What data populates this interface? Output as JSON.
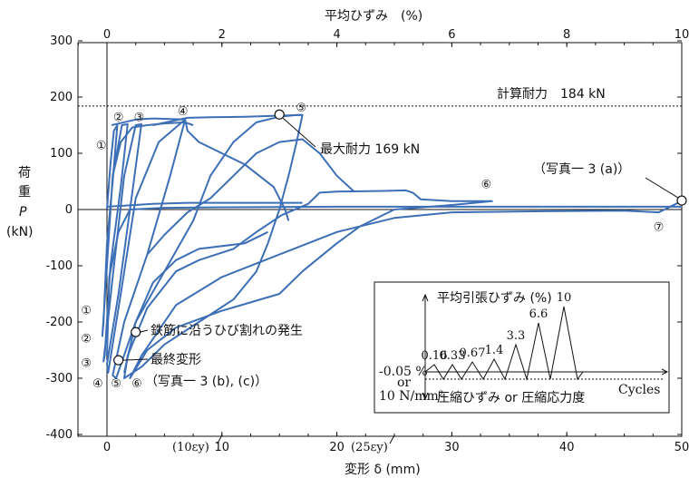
{
  "chart_data": {
    "type": "line",
    "xlabel": "変形 δ (mm)",
    "x2label": "平均ひずみ　(%)",
    "ylabel": [
      "荷",
      "重",
      "P",
      "(kN)"
    ],
    "xlim": [
      -2.5,
      50
    ],
    "x2lim": [
      -0.5,
      10
    ],
    "ylim": [
      -400,
      300
    ],
    "xticks": [
      0,
      10,
      20,
      30,
      40,
      50
    ],
    "x2ticks": [
      0,
      2,
      4,
      6,
      8,
      10
    ],
    "yticks": [
      300,
      200,
      100,
      0,
      -100,
      -200,
      -300,
      -400
    ],
    "xtick_labels": [
      "0",
      "10",
      "20",
      "30",
      "40",
      "50"
    ],
    "x2tick_labels": [
      "0",
      "2",
      "4",
      "6",
      "8",
      "10"
    ],
    "ytick_labels": [
      "300",
      "200",
      "100",
      "0",
      "-100",
      "-200",
      "-300",
      "-400"
    ],
    "strain_marks": [
      "(10εy)",
      "(25εy)"
    ],
    "strain_mark_x": [
      10,
      25
    ],
    "reference_line": {
      "label": "計算耐力　184 kN",
      "value": 184
    },
    "annotations": {
      "max_capacity": "最大耐力 169 kN",
      "photo_a": "（写真一 3 (a)）",
      "crack": "鉄筋に沿うひび割れの発生",
      "final_label": "最終変形",
      "photo_bc": "（写真一 3 (b), (c)）"
    },
    "markers": [
      {
        "name": "max",
        "x": 15,
        "y": 169
      },
      {
        "name": "end",
        "x": 50,
        "y": 16
      },
      {
        "name": "crack",
        "x": 2.5,
        "y": -218
      },
      {
        "name": "final",
        "x": 1.0,
        "y": -268
      }
    ],
    "cycle_labels_pos": [
      {
        "label": "①",
        "x": -0.5,
        "y": 115
      },
      {
        "label": "②",
        "x": 1.0,
        "y": 165
      },
      {
        "label": "③",
        "x": 2.8,
        "y": 165
      },
      {
        "label": "④",
        "x": 6.6,
        "y": 176
      },
      {
        "label": "⑤",
        "x": 16.9,
        "y": 182
      },
      {
        "label": "⑥",
        "x": 33.0,
        "y": 46
      },
      {
        "label": "⑦",
        "x": 48.0,
        "y": -30
      }
    ],
    "cycle_labels_neg": [
      {
        "label": "①",
        "x": -1.8,
        "y": -178
      },
      {
        "label": "②",
        "x": -1.8,
        "y": -228
      },
      {
        "label": "③",
        "x": -1.8,
        "y": -272
      },
      {
        "label": "④",
        "x": -0.8,
        "y": -308
      },
      {
        "label": "⑤",
        "x": 0.8,
        "y": -308
      },
      {
        "label": "⑥",
        "x": 2.6,
        "y": -308
      }
    ],
    "series": [
      {
        "values": [
          [
            0,
            0
          ],
          [
            0.3,
            80
          ],
          [
            0.6,
            140
          ],
          [
            0.9,
            150
          ],
          [
            0.5,
            50
          ],
          [
            0,
            -60
          ],
          [
            -0.3,
            -200
          ],
          [
            -0.4,
            -225
          ],
          [
            0,
            -100
          ],
          [
            0.5,
            60
          ],
          [
            1.3,
            150
          ],
          [
            1.8,
            152
          ],
          [
            1.2,
            40
          ],
          [
            0.3,
            -100
          ],
          [
            -0.2,
            -260
          ],
          [
            -0.3,
            -270
          ],
          [
            0.5,
            -120
          ],
          [
            1.5,
            60
          ],
          [
            2.5,
            150
          ],
          [
            3.0,
            152
          ],
          [
            2.2,
            30
          ],
          [
            1.0,
            -150
          ],
          [
            0,
            -275
          ],
          [
            0.1,
            -290
          ],
          [
            1.2,
            -150
          ],
          [
            2.5,
            20
          ],
          [
            4.5,
            120
          ],
          [
            6.8,
            160
          ],
          [
            5.5,
            60
          ],
          [
            3.5,
            -80
          ],
          [
            1.5,
            -200
          ],
          [
            0.5,
            -295
          ],
          [
            0.8,
            -300
          ],
          [
            2.5,
            -200
          ],
          [
            5.0,
            -110
          ],
          [
            7.5,
            -20
          ],
          [
            9.0,
            60
          ],
          [
            11,
            120
          ],
          [
            13,
            155
          ],
          [
            15,
            165
          ],
          [
            16.5,
            168
          ],
          [
            17,
            168
          ],
          [
            16.5,
            120
          ],
          [
            15.8,
            60
          ],
          [
            15,
            0
          ],
          [
            14,
            -60
          ],
          [
            13,
            -110
          ],
          [
            11,
            -160
          ],
          [
            8,
            -200
          ],
          [
            5,
            -240
          ],
          [
            3,
            -280
          ],
          [
            1.5,
            -300
          ],
          [
            1.8,
            -260
          ],
          [
            3.5,
            -175
          ],
          [
            6,
            -110
          ],
          [
            8,
            -90
          ],
          [
            11,
            -70
          ],
          [
            13,
            -40
          ],
          [
            15.2,
            -10
          ],
          [
            17.5,
            10
          ],
          [
            18.5,
            30
          ],
          [
            20,
            32
          ],
          [
            24,
            33
          ],
          [
            26,
            34
          ],
          [
            26.6,
            30
          ],
          [
            27.3,
            18
          ],
          [
            30,
            15
          ],
          [
            33.5,
            15
          ],
          [
            30,
            8
          ],
          [
            25,
            0
          ],
          [
            22,
            -30
          ],
          [
            20,
            -60
          ],
          [
            17,
            -110
          ],
          [
            15,
            -150
          ],
          [
            10,
            -180
          ],
          [
            6,
            -210
          ],
          [
            3.5,
            -250
          ],
          [
            2,
            -300
          ],
          [
            3,
            -260
          ],
          [
            6,
            -170
          ],
          [
            10,
            -120
          ],
          [
            15,
            -80
          ],
          [
            20,
            -40
          ],
          [
            25,
            -15
          ],
          [
            30,
            -5
          ],
          [
            38,
            -3
          ],
          [
            45,
            -2
          ],
          [
            48,
            -5
          ],
          [
            50,
            15
          ]
        ]
      }
    ],
    "extra_paths": [
      [
        [
          0.4,
          150
        ],
        [
          2.5,
          160
        ],
        [
          4,
          162
        ],
        [
          6.8,
          160
        ]
      ],
      [
        [
          4,
          150
        ],
        [
          7,
          163
        ],
        [
          9,
          164
        ],
        [
          12,
          165
        ],
        [
          15,
          167
        ],
        [
          17,
          168
        ]
      ],
      [
        [
          0,
          -260
        ],
        [
          0.2,
          -120
        ],
        [
          1,
          -40
        ],
        [
          2,
          0
        ],
        [
          5,
          3
        ],
        [
          10,
          4
        ],
        [
          20,
          5
        ],
        [
          30,
          5
        ],
        [
          38,
          5
        ],
        [
          45,
          5
        ],
        [
          50,
          5
        ]
      ],
      [
        [
          0,
          5
        ],
        [
          4,
          10
        ],
        [
          7,
          12
        ],
        [
          10,
          12
        ],
        [
          15,
          12
        ],
        [
          17,
          12
        ]
      ],
      [
        [
          6.8,
          160
        ],
        [
          7,
          140
        ],
        [
          8,
          120
        ],
        [
          10,
          100
        ],
        [
          12,
          80
        ],
        [
          14.5,
          40
        ],
        [
          15.5,
          0
        ],
        [
          15.8,
          -20
        ]
      ],
      [
        [
          1.5,
          -290
        ],
        [
          2.5,
          -200
        ],
        [
          4,
          -130
        ],
        [
          6,
          -90
        ],
        [
          8,
          -70
        ],
        [
          12,
          -60
        ],
        [
          14,
          -40
        ]
      ],
      [
        [
          0.5,
          60
        ],
        [
          1.2,
          120
        ],
        [
          2.2,
          146
        ],
        [
          3.5,
          150
        ],
        [
          5,
          153
        ],
        [
          6.8,
          155
        ],
        [
          7.5,
          150
        ]
      ],
      [
        [
          3.5,
          -80
        ],
        [
          5,
          -45
        ],
        [
          7,
          -5
        ],
        [
          9,
          20
        ],
        [
          11,
          60
        ],
        [
          13,
          100
        ],
        [
          15,
          120
        ],
        [
          17,
          125
        ],
        [
          18.5,
          100
        ],
        [
          20,
          60
        ],
        [
          21.5,
          32
        ]
      ]
    ],
    "inset": {
      "ylabel_top": "平均引張ひずみ (%)",
      "ylabel_bottom": "圧縮ひずみ or 圧縮応力度",
      "xlabel": "Cycles",
      "left_label_1": "-0.05 %",
      "left_label_2": "or",
      "left_label_3": "10 N/mm²",
      "peak_labels": [
        "0.16",
        "0.33",
        "0.67",
        "1.4",
        "3.3",
        "6.6",
        "10"
      ],
      "peak_values": [
        0.16,
        0.33,
        0.67,
        1.4,
        3.3,
        6.6,
        10
      ]
    }
  }
}
